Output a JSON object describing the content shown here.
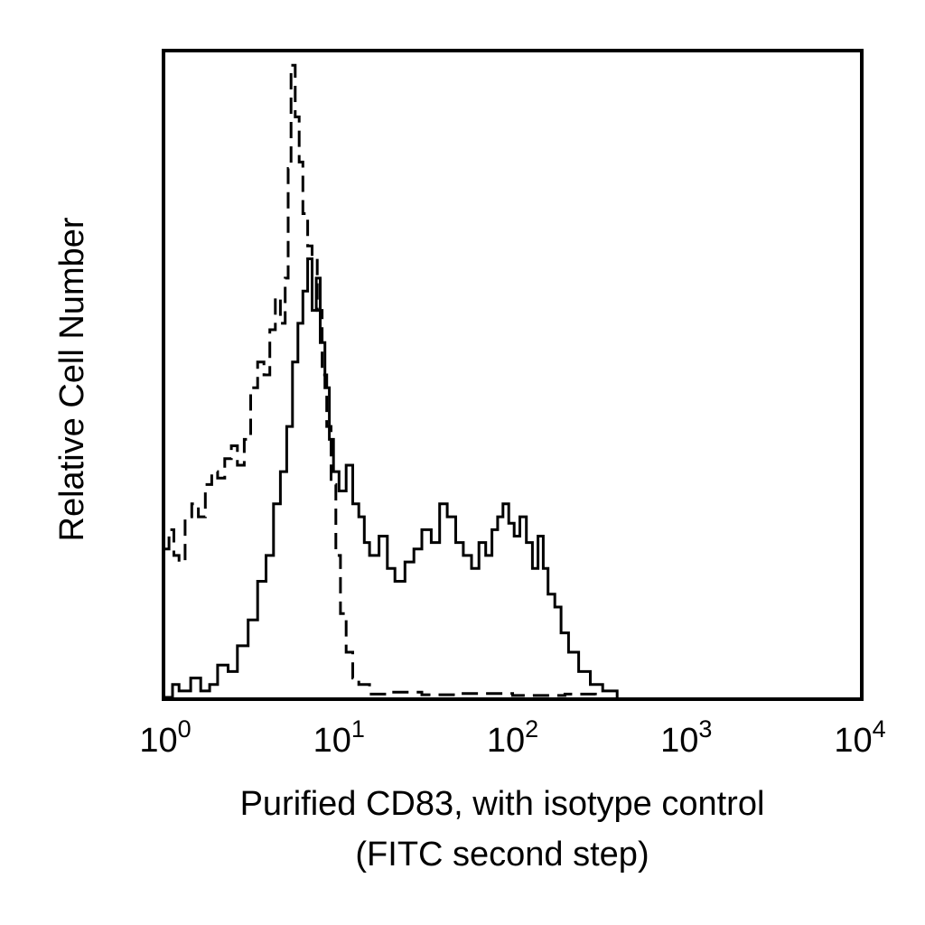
{
  "chart_data": {
    "type": "line",
    "xlabel_line1": "Purified CD83, with isotype control",
    "xlabel_line2": "(FITC second step)",
    "ylabel": "Relative Cell Number",
    "x_scale": "log",
    "xlim": [
      1,
      10000
    ],
    "ylim": [
      0,
      100
    ],
    "grid": false,
    "legend": "none",
    "x_ticks": [
      {
        "value": 1,
        "base": "10",
        "exp": "0"
      },
      {
        "value": 10,
        "base": "10",
        "exp": "1"
      },
      {
        "value": 100,
        "base": "10",
        "exp": "2"
      },
      {
        "value": 1000,
        "base": "10",
        "exp": "3"
      },
      {
        "value": 10000,
        "base": "10",
        "exp": "4"
      }
    ],
    "series": [
      {
        "style": "dashed",
        "x": [
          1.0,
          1.05,
          1.12,
          1.2,
          1.3,
          1.42,
          1.55,
          1.7,
          1.85,
          2.0,
          2.2,
          2.4,
          2.6,
          2.85,
          3.1,
          3.4,
          3.7,
          4.0,
          4.3,
          4.6,
          4.9,
          5.1,
          5.3,
          5.6,
          5.9,
          6.2,
          6.6,
          7.0,
          7.5,
          8.0,
          8.5,
          9.0,
          9.6,
          10.2,
          11,
          12,
          13,
          15,
          20,
          30,
          50,
          100,
          200,
          300
        ],
        "values": [
          23,
          26,
          22,
          21,
          28,
          30,
          28,
          33,
          35,
          34,
          37,
          39,
          36,
          40,
          48,
          52,
          50,
          57,
          62,
          58,
          65,
          82,
          98,
          90,
          83,
          75,
          70,
          68,
          60,
          50,
          42,
          33,
          22,
          13,
          7,
          3,
          2,
          0.5,
          0.8,
          0.4,
          0.6,
          0.3,
          0.5,
          0
        ]
      },
      {
        "style": "solid",
        "x": [
          1.0,
          1.1,
          1.2,
          1.4,
          1.6,
          1.8,
          2.0,
          2.3,
          2.6,
          3.0,
          3.4,
          3.8,
          4.2,
          4.6,
          5.0,
          5.4,
          5.8,
          6.2,
          6.6,
          7.0,
          7.4,
          7.8,
          8.3,
          8.8,
          9.3,
          10,
          11,
          12,
          13,
          14,
          15,
          17,
          19,
          21,
          24,
          27,
          30,
          34,
          38,
          42,
          47,
          52,
          58,
          64,
          70,
          76,
          82,
          88,
          95,
          102,
          110,
          120,
          130,
          140,
          150,
          160,
          175,
          190,
          210,
          240,
          280,
          330,
          400
        ],
        "values": [
          0,
          2,
          1,
          3,
          1,
          2,
          5,
          4,
          8,
          12,
          18,
          22,
          30,
          35,
          42,
          52,
          58,
          63,
          68,
          60,
          65,
          55,
          48,
          40,
          35,
          32,
          36,
          30,
          28,
          24,
          22,
          25,
          20,
          18,
          21,
          23,
          26,
          24,
          30,
          28,
          24,
          22,
          20,
          24,
          22,
          26,
          28,
          30,
          27,
          25,
          28,
          24,
          20,
          25,
          20,
          16,
          14,
          10,
          7,
          4,
          2,
          1,
          0
        ]
      }
    ]
  }
}
